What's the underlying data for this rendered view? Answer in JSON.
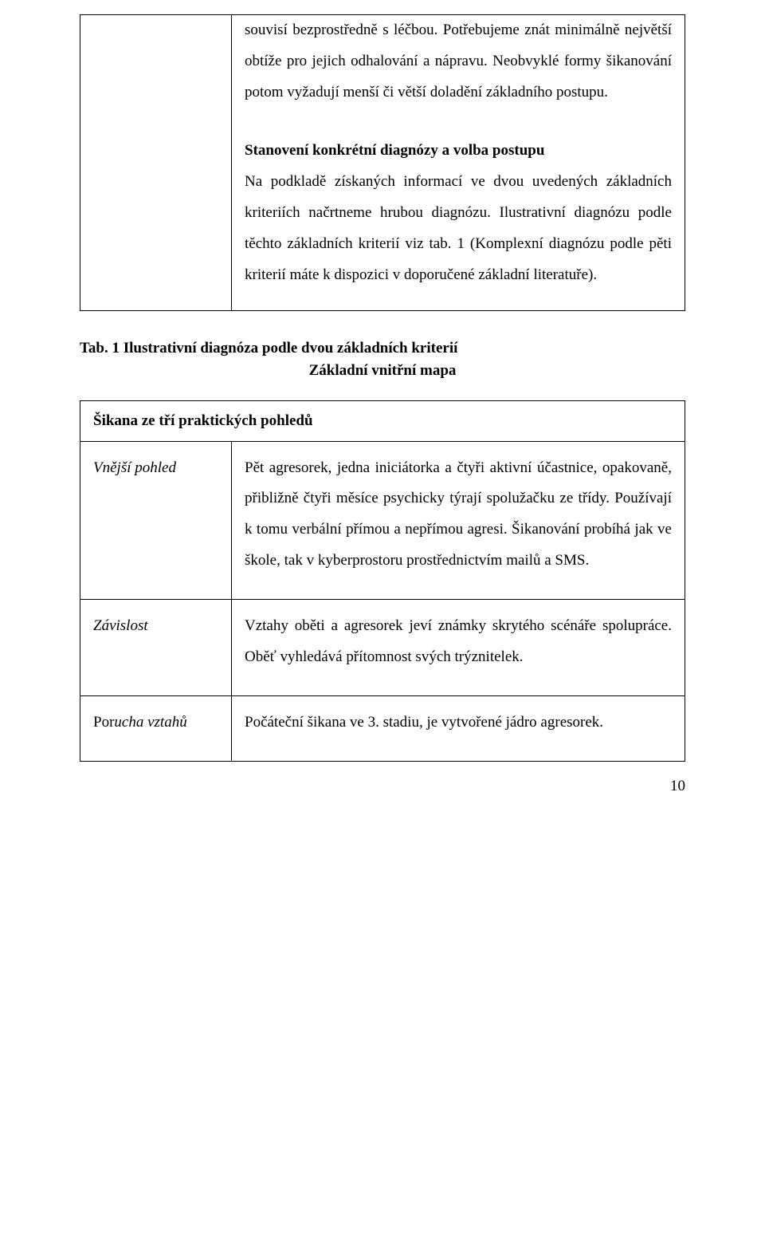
{
  "topCell": {
    "para1": "souvisí bezprostředně s léčbou. Potřebujeme znát minimálně největší obtíže pro jejich odhalování a nápravu. Neobvyklé formy šikanování potom vyžadují menší či větší doladění základního postupu.",
    "heading": "Stanovení konkrétní diagnózy a volba postupu",
    "para2": "Na podkladě získaných informací ve dvou uvedených základních kriteriích načrtneme hrubou diagnózu. Ilustrativní diagnózu podle těchto základních kriterií viz tab. 1 (Komplexní diagnózu podle pěti kriterií máte k dispozici v doporučené základní literatuře)."
  },
  "caption": "Tab. 1 Ilustrativní diagnóza podle dvou základních kriterií",
  "subtitle": "Základní vnitřní mapa",
  "headerRow": "Šikana ze tří praktických pohledů",
  "rows": [
    {
      "label": "Vnější pohled",
      "text": "Pět agresorek, jedna iniciátorka a čtyři aktivní účastnice, opakovaně, přibližně čtyři měsíce psychicky týrají spolužačku ze třídy. Používají k tomu verbální přímou a nepřímou agresi. Šikanování probíhá jak ve škole, tak v kyberprostoru prostřednictvím mailů a SMS."
    },
    {
      "label": "Závislost",
      "text": "Vztahy oběti a agresorek jeví známky skrytého scénáře spolupráce. Oběť vyhledává přítomnost svých trýznitelek."
    },
    {
      "label_prefix": "Por",
      "label_italic": "ucha vztahů",
      "text": "Počáteční šikana ve 3. stadiu, je vytvořené jádro agresorek."
    }
  ],
  "pageNumber": "10"
}
